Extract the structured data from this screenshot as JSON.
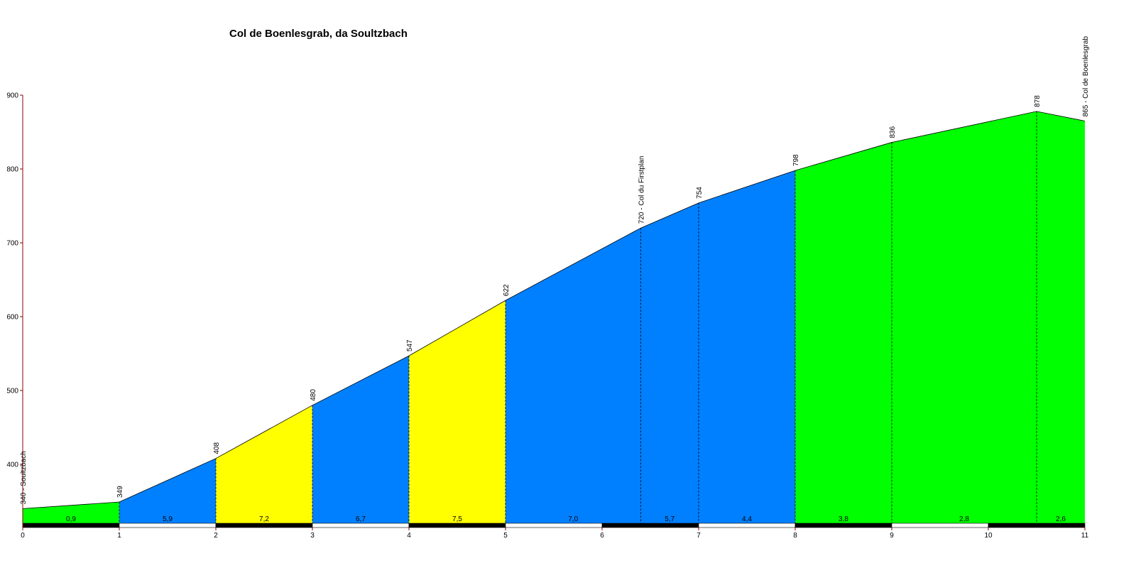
{
  "chart_data": {
    "type": "area",
    "title": "Col de Boenlesgrab, da Soultzbach",
    "xlabel": "",
    "ylabel": "",
    "xlim": [
      0,
      11
    ],
    "ylim": [
      320,
      900
    ],
    "x_ticks": [
      "0",
      "1",
      "2",
      "3",
      "4",
      "5",
      "6",
      "7",
      "8",
      "9",
      "10",
      "11"
    ],
    "y_ticks": [
      "400",
      "500",
      "600",
      "700",
      "800",
      "900"
    ],
    "grid": false,
    "colors": {
      "green": "#00ff00",
      "blue": "#0080ff",
      "yellow": "#ffff00",
      "axis": "#8b0000"
    },
    "points": [
      {
        "x": 0,
        "y": 340,
        "label": "340 - Soultzbach"
      },
      {
        "x": 1,
        "y": 349,
        "label": "349"
      },
      {
        "x": 2,
        "y": 408,
        "label": "408"
      },
      {
        "x": 3,
        "y": 480,
        "label": "480"
      },
      {
        "x": 4,
        "y": 547,
        "label": "547"
      },
      {
        "x": 5,
        "y": 622,
        "label": "622"
      },
      {
        "x": 6.4,
        "y": 720,
        "label": "720 - Col du Firstplan"
      },
      {
        "x": 7,
        "y": 754,
        "label": "754"
      },
      {
        "x": 8,
        "y": 798,
        "label": "798"
      },
      {
        "x": 9,
        "y": 836,
        "label": "836"
      },
      {
        "x": 10.5,
        "y": 878,
        "label": "878"
      },
      {
        "x": 11,
        "y": 865,
        "label": "865 - Col de Boenlesgrab"
      }
    ],
    "segments": [
      {
        "x0": 0,
        "x1": 1,
        "gradient": "0,9",
        "color": "green"
      },
      {
        "x0": 1,
        "x1": 2,
        "gradient": "5,9",
        "color": "blue"
      },
      {
        "x0": 2,
        "x1": 3,
        "gradient": "7,2",
        "color": "yellow"
      },
      {
        "x0": 3,
        "x1": 4,
        "gradient": "6,7",
        "color": "blue"
      },
      {
        "x0": 4,
        "x1": 5,
        "gradient": "7,5",
        "color": "yellow"
      },
      {
        "x0": 5,
        "x1": 6.4,
        "gradient": "7,0",
        "color": "blue"
      },
      {
        "x0": 6.4,
        "x1": 7,
        "gradient": "5,7",
        "color": "blue"
      },
      {
        "x0": 7,
        "x1": 8,
        "gradient": "4,4",
        "color": "blue"
      },
      {
        "x0": 8,
        "x1": 9,
        "gradient": "3,8",
        "color": "green"
      },
      {
        "x0": 9,
        "x1": 10.5,
        "gradient": "2,8",
        "color": "green"
      },
      {
        "x0": 10.5,
        "x1": 11,
        "gradient": "2,6",
        "color": "green"
      }
    ]
  }
}
